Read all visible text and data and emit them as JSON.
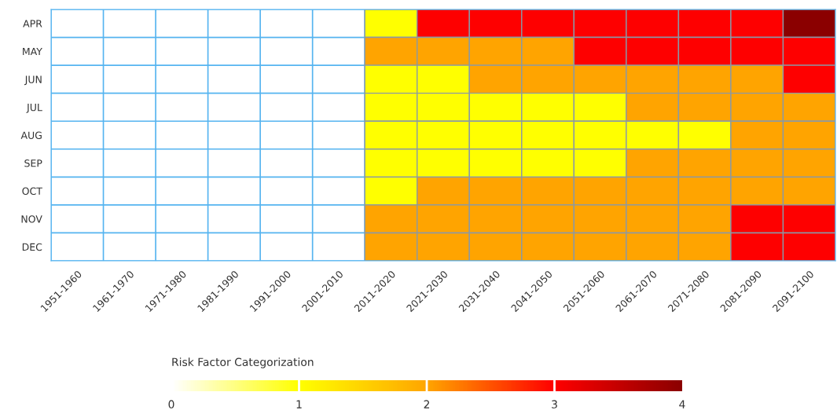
{
  "chart_data": {
    "type": "heatmap",
    "categories": [
      "1951-1960",
      "1961-1970",
      "1971-1980",
      "1981-1990",
      "1991-2000",
      "2001-2010",
      "2011-2020",
      "2021-2030",
      "2031-2040",
      "2041-2050",
      "2051-2060",
      "2061-2070",
      "2071-2080",
      "2081-2090",
      "2091-2100"
    ],
    "y_categories": [
      "APR",
      "MAY",
      "JUN",
      "JUL",
      "AUG",
      "SEP",
      "OCT",
      "NOV",
      "DEC"
    ],
    "cells": [
      [
        null,
        null,
        null,
        null,
        null,
        null,
        1,
        3,
        3,
        3,
        3,
        3,
        3,
        3,
        4
      ],
      [
        null,
        null,
        null,
        null,
        null,
        null,
        2,
        2,
        2,
        2,
        3,
        3,
        3,
        3,
        3
      ],
      [
        null,
        null,
        null,
        null,
        null,
        null,
        1,
        1,
        2,
        2,
        2,
        2,
        2,
        2,
        3
      ],
      [
        null,
        null,
        null,
        null,
        null,
        null,
        1,
        1,
        1,
        1,
        1,
        2,
        2,
        2,
        2
      ],
      [
        null,
        null,
        null,
        null,
        null,
        null,
        1,
        1,
        1,
        1,
        1,
        1,
        1,
        2,
        2
      ],
      [
        null,
        null,
        null,
        null,
        null,
        null,
        1,
        1,
        1,
        1,
        1,
        2,
        2,
        2,
        2
      ],
      [
        null,
        null,
        null,
        null,
        null,
        null,
        1,
        2,
        2,
        2,
        2,
        2,
        2,
        2,
        2
      ],
      [
        null,
        null,
        null,
        null,
        null,
        null,
        2,
        2,
        2,
        2,
        2,
        2,
        2,
        3,
        3
      ],
      [
        null,
        null,
        null,
        null,
        null,
        null,
        2,
        2,
        2,
        2,
        2,
        2,
        2,
        3,
        3
      ]
    ],
    "colors": [
      "#ffffff",
      "#ffff00",
      "#ffa500",
      "#ff0000",
      "#8b0000"
    ],
    "clabel": "Risk Factor Categorization",
    "clim": [
      0,
      4
    ],
    "cticks": [
      0,
      1,
      2,
      3,
      4
    ],
    "grid": true
  }
}
